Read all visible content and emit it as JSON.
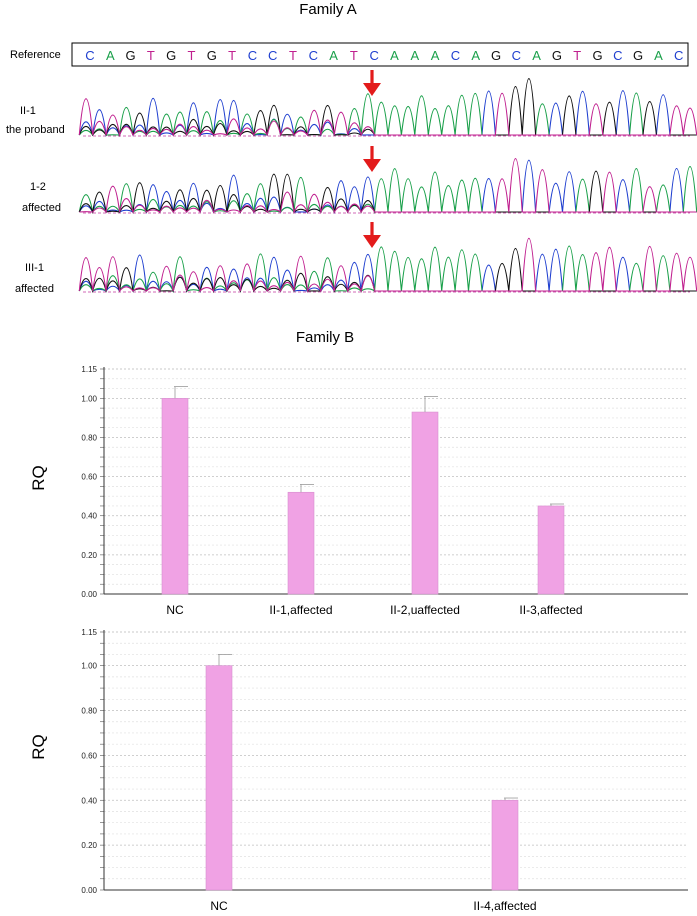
{
  "family_a": {
    "title": "Family A",
    "reference_label": "Reference",
    "sequence": [
      "C",
      "A",
      "G",
      "T",
      "G",
      "T",
      "G",
      "T",
      "C",
      "C",
      "T",
      "C",
      "A",
      "T",
      "C",
      "A",
      "A",
      "A",
      "C",
      "A",
      "G",
      "C",
      "A",
      "G",
      "T",
      "G",
      "C",
      "G",
      "A",
      "C"
    ],
    "base_colors": {
      "A": "#1aa04a",
      "C": "#1f3fcf",
      "G": "#111111",
      "T": "#c0208f"
    },
    "arrow_color": "#e31b1b",
    "tracks": [
      {
        "line1": "II-1",
        "line2": "the proband"
      },
      {
        "line1": "1-2",
        "line2": "affected"
      },
      {
        "line1": "III-1",
        "line2": "affected"
      }
    ]
  },
  "family_b": {
    "title": "Family B"
  },
  "chart_data": [
    {
      "type": "bar",
      "categories": [
        "NC",
        "II-1,affected",
        "II-2,uaffected",
        "II-3,affected"
      ],
      "values": [
        1.0,
        0.52,
        0.93,
        0.45
      ],
      "errors": [
        0.06,
        0.04,
        0.08,
        0.01
      ],
      "title": "",
      "xlabel": "",
      "ylabel": "RQ",
      "ylim": [
        0,
        1.15
      ],
      "yticks": [
        "0.00",
        "0.20",
        "0.40",
        "0.60",
        "0.80",
        "1.00",
        "1.15"
      ],
      "bar_color": "#f0a2e4",
      "grid": true
    },
    {
      "type": "bar",
      "categories": [
        "NC",
        "II-4,affected"
      ],
      "values": [
        1.0,
        0.4
      ],
      "errors": [
        0.05,
        0.01
      ],
      "title": "",
      "xlabel": "",
      "ylabel": "RQ",
      "ylim": [
        0,
        1.15
      ],
      "yticks": [
        "0.00",
        "0.20",
        "0.40",
        "0.60",
        "0.80",
        "1.00",
        "1.15"
      ],
      "bar_color": "#f0a2e4",
      "grid": true
    }
  ]
}
